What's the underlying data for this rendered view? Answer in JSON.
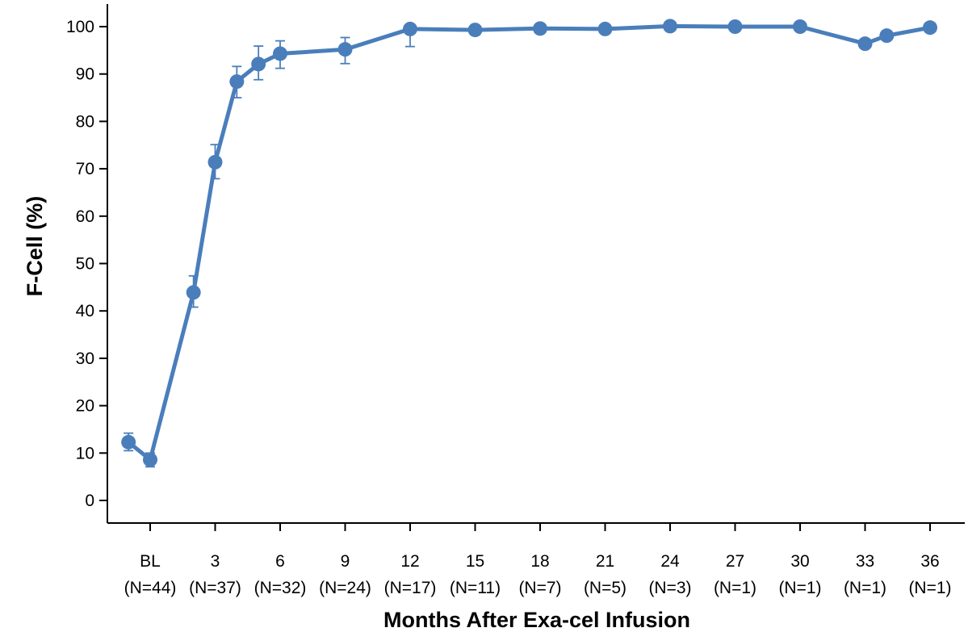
{
  "chart_data": {
    "type": "line",
    "title": "",
    "xlabel": "Months After Exa-cel Infusion",
    "ylabel": "F-Cell (%)",
    "ylim": [
      0,
      100
    ],
    "yticks": [
      0,
      10,
      20,
      30,
      40,
      50,
      60,
      70,
      80,
      90,
      100
    ],
    "xlim": [
      -2,
      37
    ],
    "grid": false,
    "legend": "none",
    "x_ticks": [
      {
        "x": 0,
        "label": "BL",
        "n": "(N=44)"
      },
      {
        "x": 3,
        "label": "3",
        "n": "(N=37)"
      },
      {
        "x": 6,
        "label": "6",
        "n": "(N=32)"
      },
      {
        "x": 9,
        "label": "9",
        "n": "(N=24)"
      },
      {
        "x": 12,
        "label": "12",
        "n": "(N=17)"
      },
      {
        "x": 15,
        "label": "15",
        "n": "(N=11)"
      },
      {
        "x": 18,
        "label": "18",
        "n": "(N=7)"
      },
      {
        "x": 21,
        "label": "21",
        "n": "(N=5)"
      },
      {
        "x": 24,
        "label": "24",
        "n": "(N=3)"
      },
      {
        "x": 27,
        "label": "27",
        "n": "(N=1)"
      },
      {
        "x": 30,
        "label": "30",
        "n": "(N=1)"
      },
      {
        "x": 33,
        "label": "33",
        "n": "(N=1)"
      },
      {
        "x": 36,
        "label": "36",
        "n": "(N=1)"
      }
    ],
    "series": [
      {
        "color": "#4a7ebb",
        "points": [
          {
            "x": -1,
            "y": 12.3,
            "err_low": 10.5,
            "err_high": 14.2
          },
          {
            "x": 0,
            "y": 8.6,
            "err_low": 7.1,
            "err_high": 10.0
          },
          {
            "x": 2,
            "y": 43.9,
            "err_low": 40.8,
            "err_high": 47.4
          },
          {
            "x": 3,
            "y": 71.4,
            "err_low": 67.9,
            "err_high": 75.1
          },
          {
            "x": 4,
            "y": 88.4,
            "err_low": 85.0,
            "err_high": 91.6
          },
          {
            "x": 5,
            "y": 92.1,
            "err_low": 88.8,
            "err_high": 95.9
          },
          {
            "x": 6,
            "y": 94.3,
            "err_low": 91.2,
            "err_high": 97.0
          },
          {
            "x": 9,
            "y": 95.2,
            "err_low": 92.2,
            "err_high": 97.7
          },
          {
            "x": 12,
            "y": 99.5,
            "err_low": 95.8,
            "err_high": 100.0
          },
          {
            "x": 15,
            "y": 99.3
          },
          {
            "x": 18,
            "y": 99.6
          },
          {
            "x": 21,
            "y": 99.5
          },
          {
            "x": 24,
            "y": 100.1
          },
          {
            "x": 27,
            "y": 100.0
          },
          {
            "x": 30,
            "y": 100.0
          },
          {
            "x": 33,
            "y": 96.4
          },
          {
            "x": 34,
            "y": 98.1
          },
          {
            "x": 36,
            "y": 99.8
          }
        ]
      }
    ]
  }
}
